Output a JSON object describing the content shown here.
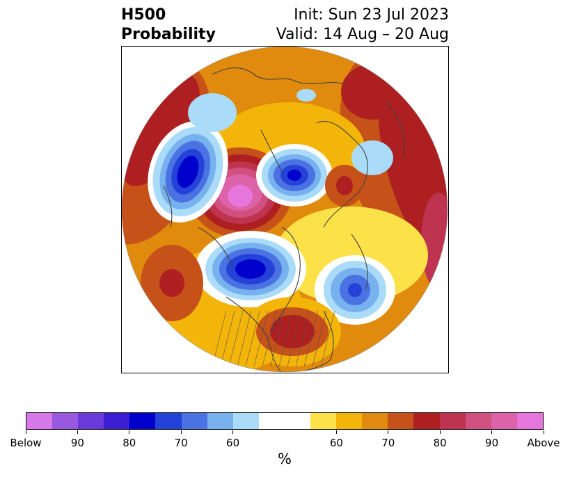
{
  "title": {
    "left_line1": "H500",
    "left_line2": "Probability",
    "right_line1": "Init: Sun 23 Jul 2023",
    "right_line2": "Valid: 14 Aug – 20 Aug"
  },
  "colorbar": {
    "colors": [
      "#d678e8",
      "#9a57e0",
      "#6a3ad8",
      "#3b1ed4",
      "#0000cc",
      "#2442d8",
      "#4b72e3",
      "#77b1ee",
      "#aadcfa",
      "#ffffff",
      "#ffffff",
      "#fde148",
      "#f3b509",
      "#e08a0e",
      "#c6521a",
      "#ad1f20",
      "#be3450",
      "#d05080",
      "#dd63a8",
      "#e676dc"
    ],
    "tick_labels": [
      "Below",
      "90",
      "80",
      "70",
      "60",
      "60",
      "70",
      "80",
      "90",
      "Above"
    ],
    "units_label": "%"
  },
  "map_colors": {
    "orange": "#e08a0e",
    "gold": "#f3b509",
    "yellow": "#fde148",
    "rust": "#c6521a",
    "red": "#ad1f20",
    "crimson": "#be3450",
    "rose": "#d05080",
    "pink": "#dd63a8",
    "magenta": "#e676dc",
    "lightblue": "#aadcfa",
    "skyblue": "#77b1ee",
    "blue": "#4b72e3",
    "royal": "#2442d8",
    "navy": "#0000cc",
    "indigo": "#3b1ed4",
    "white": "#ffffff",
    "coast": "#404040"
  }
}
